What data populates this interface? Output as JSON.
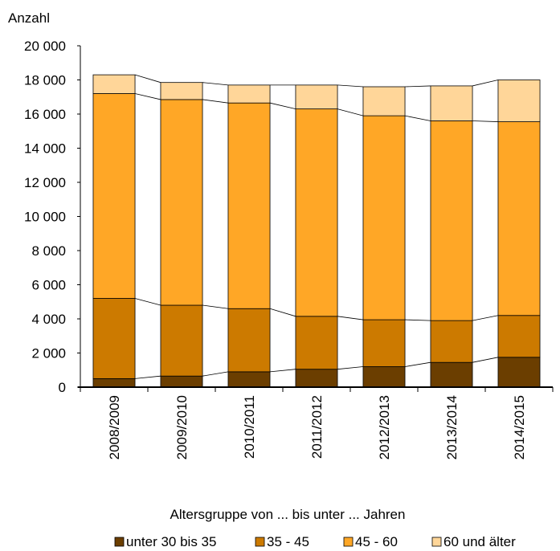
{
  "chart_data": {
    "type": "bar",
    "stacked": true,
    "ylabel": "Anzahl",
    "ylim": [
      0,
      20000
    ],
    "yticks": [
      0,
      2000,
      4000,
      6000,
      8000,
      10000,
      12000,
      14000,
      16000,
      18000,
      20000
    ],
    "ytick_labels": [
      "0",
      "2 000",
      "4 000",
      "6 000",
      "8 000",
      "10 000",
      "12 000",
      "14 000",
      "16 000",
      "18 000",
      "20 000"
    ],
    "categories": [
      "2008/2009",
      "2009/2010",
      "2010/2011",
      "2011/2012",
      "2012/2013",
      "2013/2014",
      "2014/2015"
    ],
    "series": [
      {
        "name": "unter 30 bis 35",
        "color": "#6b3e00",
        "values": [
          500,
          650,
          900,
          1050,
          1200,
          1450,
          1750
        ]
      },
      {
        "name": "35 - 45",
        "color": "#cc7a00",
        "values": [
          4700,
          4150,
          3700,
          3100,
          2750,
          2450,
          2450
        ]
      },
      {
        "name": "45 - 60",
        "color": "#ffa726",
        "values": [
          12000,
          12050,
          12050,
          12150,
          11950,
          11700,
          11350
        ]
      },
      {
        "name": "60 und älter",
        "color": "#ffd699",
        "values": [
          1100,
          1000,
          1050,
          1400,
          1700,
          2050,
          2450
        ]
      }
    ],
    "legend_title": "Altersgruppe von ... bis unter ... Jahren",
    "legend_position": "bottom",
    "grid": false,
    "connector_lines": true
  }
}
